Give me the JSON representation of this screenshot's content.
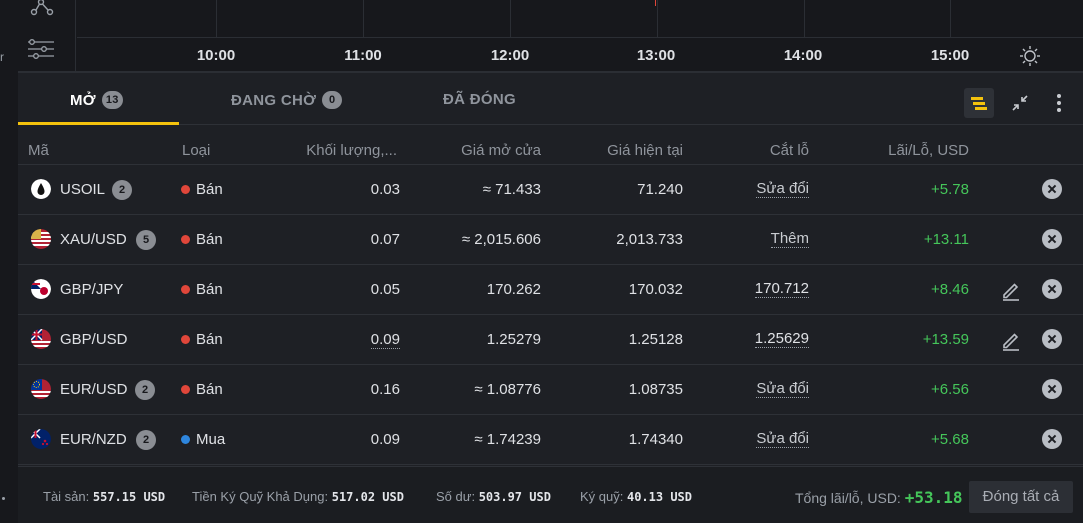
{
  "chart": {
    "times": [
      "10:00",
      "11:00",
      "12:00",
      "13:00",
      "14:00",
      "15:00"
    ]
  },
  "edge": {
    "label": "r"
  },
  "tabs": [
    {
      "label": "MỞ",
      "count": "13"
    },
    {
      "label": "ĐANG CHỜ",
      "count": "0"
    },
    {
      "label": "ĐÃ ĐÓNG"
    }
  ],
  "table": {
    "headers": {
      "symbol": "Mã",
      "type": "Loại",
      "volume": "Khối lượng,...",
      "open": "Giá mở cửa",
      "current": "Giá hiện tại",
      "stoploss": "Cắt lỗ",
      "pl": "Lãi/Lỗ, USD"
    },
    "rows": [
      {
        "symbol": "USOIL",
        "badge": "2",
        "type": "Bán",
        "type_color": "#e0463a",
        "volume": "0.03",
        "open": "≈ 71.433",
        "current": "71.240",
        "stoploss": "Sửa đổi",
        "pl": "+5.78",
        "flag": "oil"
      },
      {
        "symbol": "XAU/USD",
        "badge": "5",
        "type": "Bán",
        "type_color": "#e0463a",
        "volume": "0.07",
        "open": "≈ 2,015.606",
        "current": "2,013.733",
        "stoploss": "Thêm",
        "pl": "+13.11",
        "flag": "gold-us"
      },
      {
        "symbol": "GBP/JPY",
        "type": "Bán",
        "type_color": "#e0463a",
        "volume": "0.05",
        "open": "170.262",
        "current": "170.032",
        "stoploss": "170.712",
        "pl": "+8.46",
        "flag": "gb-jp"
      },
      {
        "symbol": "GBP/USD",
        "type": "Bán",
        "type_color": "#e0463a",
        "volume": "0.09",
        "open": "1.25279",
        "current": "1.25128",
        "stoploss": "1.25629",
        "pl": "+13.59",
        "flag": "gb-us"
      },
      {
        "symbol": "EUR/USD",
        "badge": "2",
        "type": "Bán",
        "type_color": "#e0463a",
        "volume": "0.16",
        "open": "≈ 1.08776",
        "current": "1.08735",
        "stoploss": "Sửa đổi",
        "pl": "+6.56",
        "flag": "eu-us"
      },
      {
        "symbol": "EUR/NZD",
        "badge": "2",
        "type": "Mua",
        "type_color": "#2e86de",
        "volume": "0.09",
        "open": "≈ 1.74239",
        "current": "1.74340",
        "stoploss": "Sửa đổi",
        "pl": "+5.68",
        "flag": "eu-nz"
      }
    ]
  },
  "footer": {
    "assets_label": "Tài sản:",
    "assets": "557.15 USD",
    "free_margin_label": "Tiền Ký Quỹ Khả Dụng:",
    "free_margin": "517.02 USD",
    "balance_label": "Số dư:",
    "balance": "503.97 USD",
    "margin_label": "Ký quỹ:",
    "margin": "40.13 USD",
    "total_label": "Tổng lãi/lỗ, USD:",
    "total": "+53.18",
    "close_all": "Đóng tất cả"
  },
  "colors": {
    "accent": "#f4c20d",
    "profit": "#45c65a",
    "sell": "#e0463a",
    "buy": "#2e86de"
  }
}
